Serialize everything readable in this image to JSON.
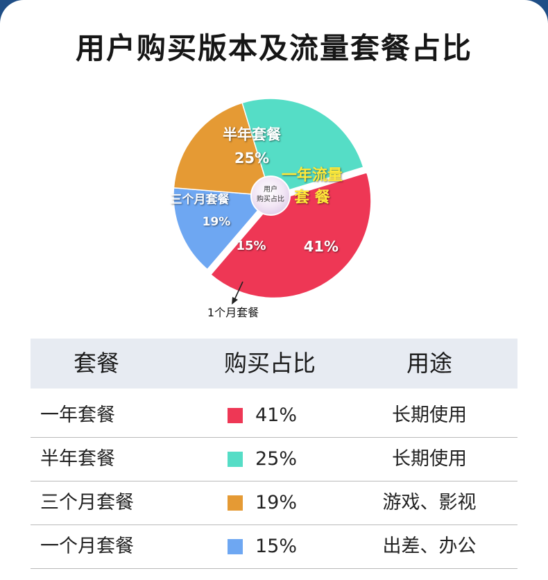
{
  "title": "用户购买版本及流量套餐占比",
  "chart_data": {
    "type": "pie",
    "center_label": [
      "用户",
      "购买占比"
    ],
    "slices": [
      {
        "label_lines": [
          "一年流量",
          "套 餐"
        ],
        "value": 41,
        "value_label": "41%",
        "color": "#ee3755"
      },
      {
        "label_lines": [
          "1个月套餐"
        ],
        "value": 15,
        "value_label": "15%",
        "color": "#6ea7f2"
      },
      {
        "label_lines": [
          "三个月套餐"
        ],
        "value": 19,
        "value_label": "19%",
        "color": "#e59a34"
      },
      {
        "label_lines": [
          "半年套餐"
        ],
        "value": 25,
        "value_label": "25%",
        "color": "#55ddc6"
      }
    ]
  },
  "table": {
    "headers": [
      "套餐",
      "购买占比",
      "用途"
    ],
    "rows": [
      {
        "plan": "一年套餐",
        "share": "41%",
        "color": "#ee3755",
        "use": "长期使用"
      },
      {
        "plan": "半年套餐",
        "share": "25%",
        "color": "#55ddc6",
        "use": "长期使用"
      },
      {
        "plan": "三个月套餐",
        "share": "19%",
        "color": "#e59a34",
        "use": "游戏、影视"
      },
      {
        "plan": "一个月套餐",
        "share": "15%",
        "color": "#6ea7f2",
        "use": "出差、办公"
      }
    ]
  }
}
